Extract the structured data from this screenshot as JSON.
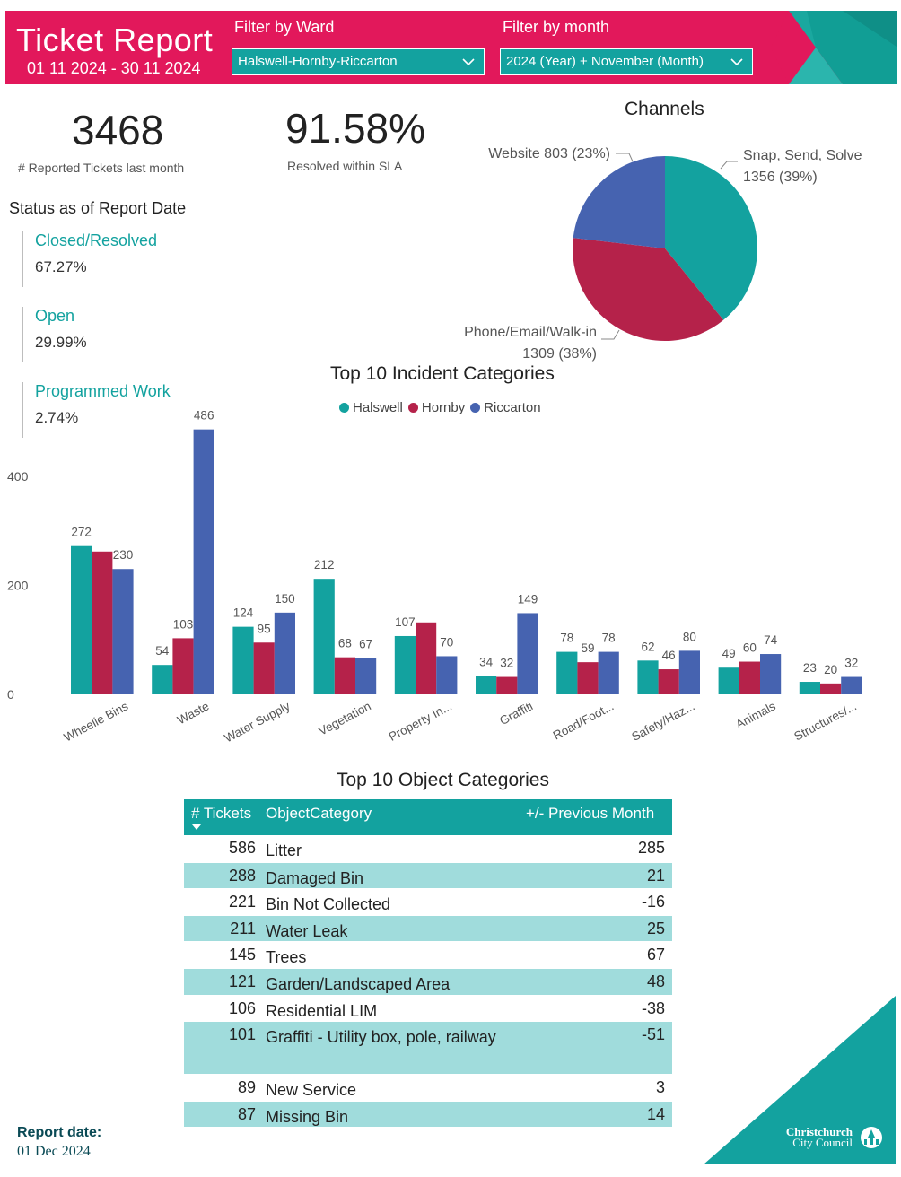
{
  "header": {
    "title": "Ticket Report",
    "date_range": "01 11 2024 - 30 11 2024",
    "ward_filter_label": "Filter by Ward",
    "ward_filter_value": "Halswell-Hornby-Riccarton",
    "month_filter_label": "Filter by month",
    "month_filter_value": "2024 (Year) + November (Month)"
  },
  "kpis": {
    "reported_value": "3468",
    "reported_label": "# Reported Tickets last month",
    "sla_value": "91.58%",
    "sla_label": "Resolved within SLA"
  },
  "status": {
    "title": "Status as of Report Date",
    "items": [
      {
        "name": "Closed/Resolved",
        "value": "67.27%"
      },
      {
        "name": "Open",
        "value": "29.99%"
      },
      {
        "name": "Programmed Work",
        "value": "2.74%"
      }
    ]
  },
  "colors": {
    "brand_pink": "#e2185b",
    "teal": "#13a29f",
    "crimson": "#b5224a",
    "blue": "#4663b0",
    "row_alt": "#a0dcdc"
  },
  "chart_data": [
    {
      "type": "pie",
      "title": "Channels",
      "slices": [
        {
          "label": "Snap, Send, Solve",
          "value": 1356,
          "percent_label": "1356 (39%)",
          "color": "#13a29f"
        },
        {
          "label": "Phone/Email/Walk-in",
          "value": 1309,
          "percent_label": "1309 (38%)",
          "color": "#b5224a"
        },
        {
          "label": "Website",
          "value": 803,
          "percent_label": "803 (23%)",
          "color": "#4663b0"
        }
      ],
      "slice_label_texts": [
        "Snap, Send, Solve",
        "1356 (39%)",
        "Phone/Email/Walk-in",
        "1309 (38%)",
        "Website 803 (23%)"
      ]
    },
    {
      "type": "bar",
      "title": "Top 10 Incident Categories",
      "categories": [
        "Wheelie Bins",
        "Waste",
        "Water Supply",
        "Vegetation",
        "Property In...",
        "Graffiti",
        "Road/Foot...",
        "Safety/Haz...",
        "Animals",
        "Structures/..."
      ],
      "series": [
        {
          "name": "Halswell",
          "color": "#13a29f",
          "values": [
            272,
            54,
            124,
            212,
            107,
            34,
            78,
            62,
            49,
            23
          ]
        },
        {
          "name": "Hornby",
          "color": "#b5224a",
          "values": [
            262,
            103,
            95,
            68,
            132,
            32,
            59,
            46,
            60,
            20
          ]
        },
        {
          "name": "Riccarton",
          "color": "#4663b0",
          "values": [
            230,
            486,
            150,
            67,
            70,
            149,
            78,
            80,
            74,
            32
          ]
        }
      ],
      "value_labels": [
        [
          "272",
          "54",
          "124",
          "212",
          "107",
          "34",
          "78",
          "62",
          "49",
          "23"
        ],
        [
          "",
          "103",
          "95",
          "68",
          "",
          "32",
          "59",
          "46",
          "60",
          "20"
        ],
        [
          "230",
          "486",
          "150",
          "67",
          "70",
          "149",
          "78",
          "80",
          "74",
          "32"
        ]
      ],
      "yticks": [
        0,
        200,
        400
      ],
      "ylim": [
        0,
        520
      ],
      "grid": false,
      "legend_position": "top-center"
    },
    {
      "type": "table",
      "title": "Top 10 Object Categories",
      "columns": [
        "# Tickets",
        "ObjectCategory",
        "+/- Previous Month"
      ],
      "rows": [
        [
          "586",
          "Litter",
          "285"
        ],
        [
          "288",
          "Damaged Bin",
          "21"
        ],
        [
          "221",
          "Bin Not Collected",
          "-16"
        ],
        [
          "211",
          "Water Leak",
          "25"
        ],
        [
          "145",
          "Trees",
          "67"
        ],
        [
          "121",
          "Garden/Landscaped Area",
          "48"
        ],
        [
          "106",
          "Residential LIM",
          "-38"
        ],
        [
          "101",
          "Graffiti - Utility box, pole, railway",
          "-51"
        ],
        [
          "89",
          "New Service",
          "3"
        ],
        [
          "87",
          "Missing Bin",
          "14"
        ]
      ]
    }
  ],
  "footer": {
    "report_label": "Report date:",
    "report_date": "01 Dec 2024",
    "logo_line1": "Christchurch",
    "logo_line2": "City Council"
  },
  "icons": {
    "dropdown": "chevron-down-icon",
    "logo": "christchurch-logo-icon",
    "sort": "sort-desc-icon"
  }
}
